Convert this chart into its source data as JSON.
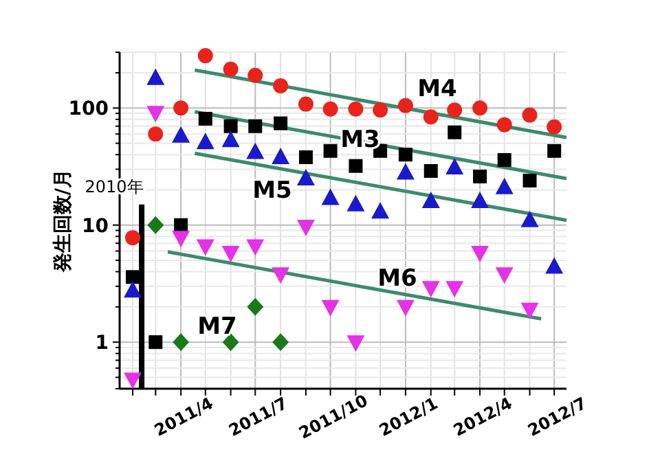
{
  "chart_data": {
    "type": "scatter",
    "ylabel": "発生回数/月",
    "log": "y",
    "grid": true,
    "xlim": [
      "2011-01-16",
      "2012-07-16"
    ],
    "xticks": [
      {
        "value": "2011-02",
        "label": null
      },
      {
        "value": "2011-03",
        "label": null
      },
      {
        "value": "2011-04",
        "label": "2011/4"
      },
      {
        "value": "2011-05",
        "label": null
      },
      {
        "value": "2011-06",
        "label": null
      },
      {
        "value": "2011-07",
        "label": "2011/7"
      },
      {
        "value": "2011-08",
        "label": null
      },
      {
        "value": "2011-09",
        "label": null
      },
      {
        "value": "2011-10",
        "label": "2011/10"
      },
      {
        "value": "2011-11",
        "label": null
      },
      {
        "value": "2011-12",
        "label": null
      },
      {
        "value": "2012-01",
        "label": "2012/1"
      },
      {
        "value": "2012-02",
        "label": null
      },
      {
        "value": "2012-03",
        "label": null
      },
      {
        "value": "2012-04",
        "label": "2012/4"
      },
      {
        "value": "2012-05",
        "label": null
      },
      {
        "value": "2012-06",
        "label": null
      },
      {
        "value": "2012-07",
        "label": "2012/7"
      }
    ],
    "ylim": [
      0.4,
      300
    ],
    "yticks": [
      {
        "value": 0.4,
        "label": null
      },
      {
        "value": 0.5,
        "label": null
      },
      {
        "value": 0.6,
        "label": null
      },
      {
        "value": 0.7,
        "label": null
      },
      {
        "value": 0.8,
        "label": null
      },
      {
        "value": 0.9,
        "label": null
      },
      1,
      {
        "value": 2,
        "label": null
      },
      {
        "value": 3,
        "label": null
      },
      {
        "value": 4,
        "label": null
      },
      {
        "value": 5,
        "label": null
      },
      {
        "value": 6,
        "label": null
      },
      {
        "value": 7,
        "label": null
      },
      {
        "value": 8,
        "label": null
      },
      {
        "value": 9,
        "label": null
      },
      10,
      {
        "value": 20,
        "label": null
      },
      {
        "value": 30,
        "label": null
      },
      {
        "value": 40,
        "label": null
      },
      {
        "value": 50,
        "label": null
      },
      {
        "value": 60,
        "label": null
      },
      {
        "value": 70,
        "label": null
      },
      {
        "value": 80,
        "label": null
      },
      {
        "value": 90,
        "label": null
      },
      100,
      {
        "value": 200,
        "label": null
      },
      {
        "value": 300,
        "label": null
      }
    ],
    "x": [
      "2011-02",
      "2011-03",
      "2011-04",
      "2011-05",
      "2011-06",
      "2011-07",
      "2011-08",
      "2011-09",
      "2011-10",
      "2011-11",
      "2011-12",
      "2012-01",
      "2012-02",
      "2012-03",
      "2012-04",
      "2012-05",
      "2012-06",
      "2012-07"
    ],
    "series": [
      {
        "color": "#e8231c",
        "marker": "circle",
        "values": [
          7.8,
          60,
          100,
          280,
          215,
          190,
          155,
          108,
          98,
          98,
          96,
          105,
          84,
          96,
          100,
          72,
          87,
          69
        ]
      },
      {
        "color": "#000000",
        "marker": "square",
        "values": [
          3.6,
          1,
          10,
          81,
          70,
          70,
          74,
          38,
          43,
          32,
          43,
          40,
          29,
          62,
          26,
          36,
          24,
          43
        ]
      },
      {
        "color": "#1a1acc",
        "marker": "triangle",
        "values": [
          2.75,
          180,
          58,
          51,
          53,
          42,
          38,
          25,
          17,
          15,
          13,
          28,
          16,
          31,
          16,
          21,
          11,
          4.4
        ]
      },
      {
        "color": "#e632e6",
        "marker": "triangle-down",
        "values": [
          0.48,
          91,
          7.8,
          6.6,
          5.8,
          6.6,
          3.8,
          9.7,
          2,
          1,
          null,
          2,
          2.9,
          2.9,
          5.8,
          3.8,
          1.9,
          null
        ]
      },
      {
        "color": "#1a7a1a",
        "marker": "diamond",
        "values": [
          null,
          10,
          1,
          null,
          1,
          2,
          1,
          null,
          null,
          null,
          null,
          null,
          null,
          null,
          null,
          null,
          null,
          null
        ]
      },
      {
        "type": "line",
        "color": "#3d8a6e",
        "x": [
          "2011-04-18",
          "2012-07-16"
        ],
        "values": [
          211,
          56
        ]
      },
      {
        "type": "line",
        "color": "#3d8a6e",
        "x": [
          "2011-04-18",
          "2012-07-16"
        ],
        "values": [
          93,
          25
        ]
      },
      {
        "type": "line",
        "color": "#3d8a6e",
        "x": [
          "2011-04-18",
          "2012-07-16"
        ],
        "values": [
          41,
          11
        ]
      },
      {
        "type": "line",
        "color": "#3d8a6e",
        "x": [
          "2011-03-16",
          "2012-06-15"
        ],
        "values": [
          5.9,
          1.58
        ]
      },
      {
        "type": "line",
        "color": "#000000",
        "x": [
          "2011-02-12",
          "2011-02-12"
        ],
        "values": [
          15,
          0.4
        ]
      }
    ],
    "annotations": [
      {
        "text": "2010年",
        "x": "2011-02-12",
        "y": 15
      },
      "M4",
      "M3",
      "M5",
      "M6",
      "M7"
    ]
  }
}
